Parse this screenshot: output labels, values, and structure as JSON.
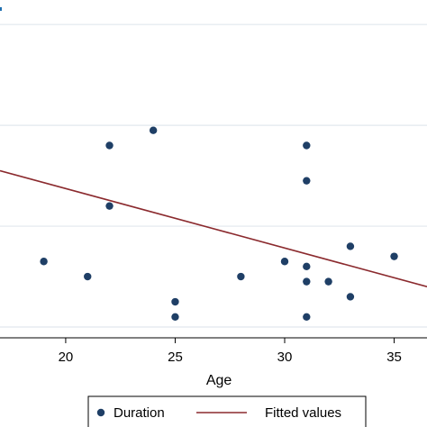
{
  "chart_data": {
    "type": "scatter",
    "xlabel": "Age",
    "ylabel": "",
    "xlim": [
      17,
      36.5
    ],
    "ylim": [
      0,
      3.35
    ],
    "x_ticks": [
      20,
      25,
      30,
      35
    ],
    "y_gridlines": [
      0,
      1,
      2,
      3
    ],
    "grid": true,
    "series": [
      {
        "name": "Duration",
        "kind": "points",
        "color": "#1f3f66",
        "points": [
          {
            "x": 19,
            "y": 0.65
          },
          {
            "x": 21,
            "y": 0.5
          },
          {
            "x": 22,
            "y": 1.8
          },
          {
            "x": 22,
            "y": 1.2
          },
          {
            "x": 24,
            "y": 1.95
          },
          {
            "x": 25,
            "y": 0.25
          },
          {
            "x": 25,
            "y": 0.1
          },
          {
            "x": 28,
            "y": 0.5
          },
          {
            "x": 30,
            "y": 0.65
          },
          {
            "x": 31,
            "y": 1.8
          },
          {
            "x": 31,
            "y": 1.45
          },
          {
            "x": 31,
            "y": 0.6
          },
          {
            "x": 31,
            "y": 0.45
          },
          {
            "x": 31,
            "y": 0.1
          },
          {
            "x": 32,
            "y": 0.45
          },
          {
            "x": 33,
            "y": 0.8
          },
          {
            "x": 33,
            "y": 0.3
          },
          {
            "x": 35,
            "y": 0.7
          }
        ]
      },
      {
        "name": "Fitted values",
        "kind": "line",
        "color": "#8b2a2e",
        "points": [
          {
            "x": 17,
            "y": 1.55
          },
          {
            "x": 36.5,
            "y": 0.4
          }
        ]
      }
    ],
    "legend": {
      "position": "bottom",
      "entries": [
        "Duration",
        "Fitted values"
      ]
    }
  }
}
